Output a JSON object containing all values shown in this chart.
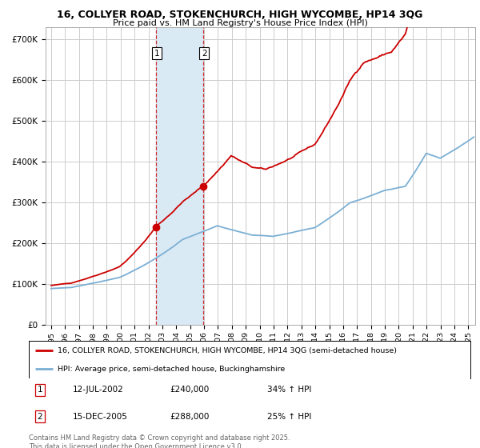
{
  "title": "16, COLLYER ROAD, STOKENCHURCH, HIGH WYCOMBE, HP14 3QG",
  "subtitle": "Price paid vs. HM Land Registry's House Price Index (HPI)",
  "red_label": "16, COLLYER ROAD, STOKENCHURCH, HIGH WYCOMBE, HP14 3QG (semi-detached house)",
  "blue_label": "HPI: Average price, semi-detached house, Buckinghamshire",
  "transactions": [
    {
      "num": 1,
      "date": "12-JUL-2002",
      "price": "£240,000",
      "pct": "34% ↑ HPI"
    },
    {
      "num": 2,
      "date": "15-DEC-2005",
      "price": "£288,000",
      "pct": "25% ↑ HPI"
    }
  ],
  "transaction_dates": [
    2002.53,
    2005.96
  ],
  "transaction_values_red": [
    240000,
    288000
  ],
  "copyright": "Contains HM Land Registry data © Crown copyright and database right 2025.\nThis data is licensed under the Open Government Licence v3.0.",
  "ylim": [
    0,
    730000
  ],
  "yticks": [
    0,
    100000,
    200000,
    300000,
    400000,
    500000,
    600000,
    700000
  ],
  "ytick_labels": [
    "£0",
    "£100K",
    "£200K",
    "£300K",
    "£400K",
    "£500K",
    "£600K",
    "£700K"
  ],
  "red_color": "#cc0000",
  "blue_color": "#7bafd4",
  "shade_color": "#daeaf5",
  "background_color": "#ffffff",
  "grid_color": "#cccccc",
  "xlim_start": 1994.6,
  "xlim_end": 2025.5
}
